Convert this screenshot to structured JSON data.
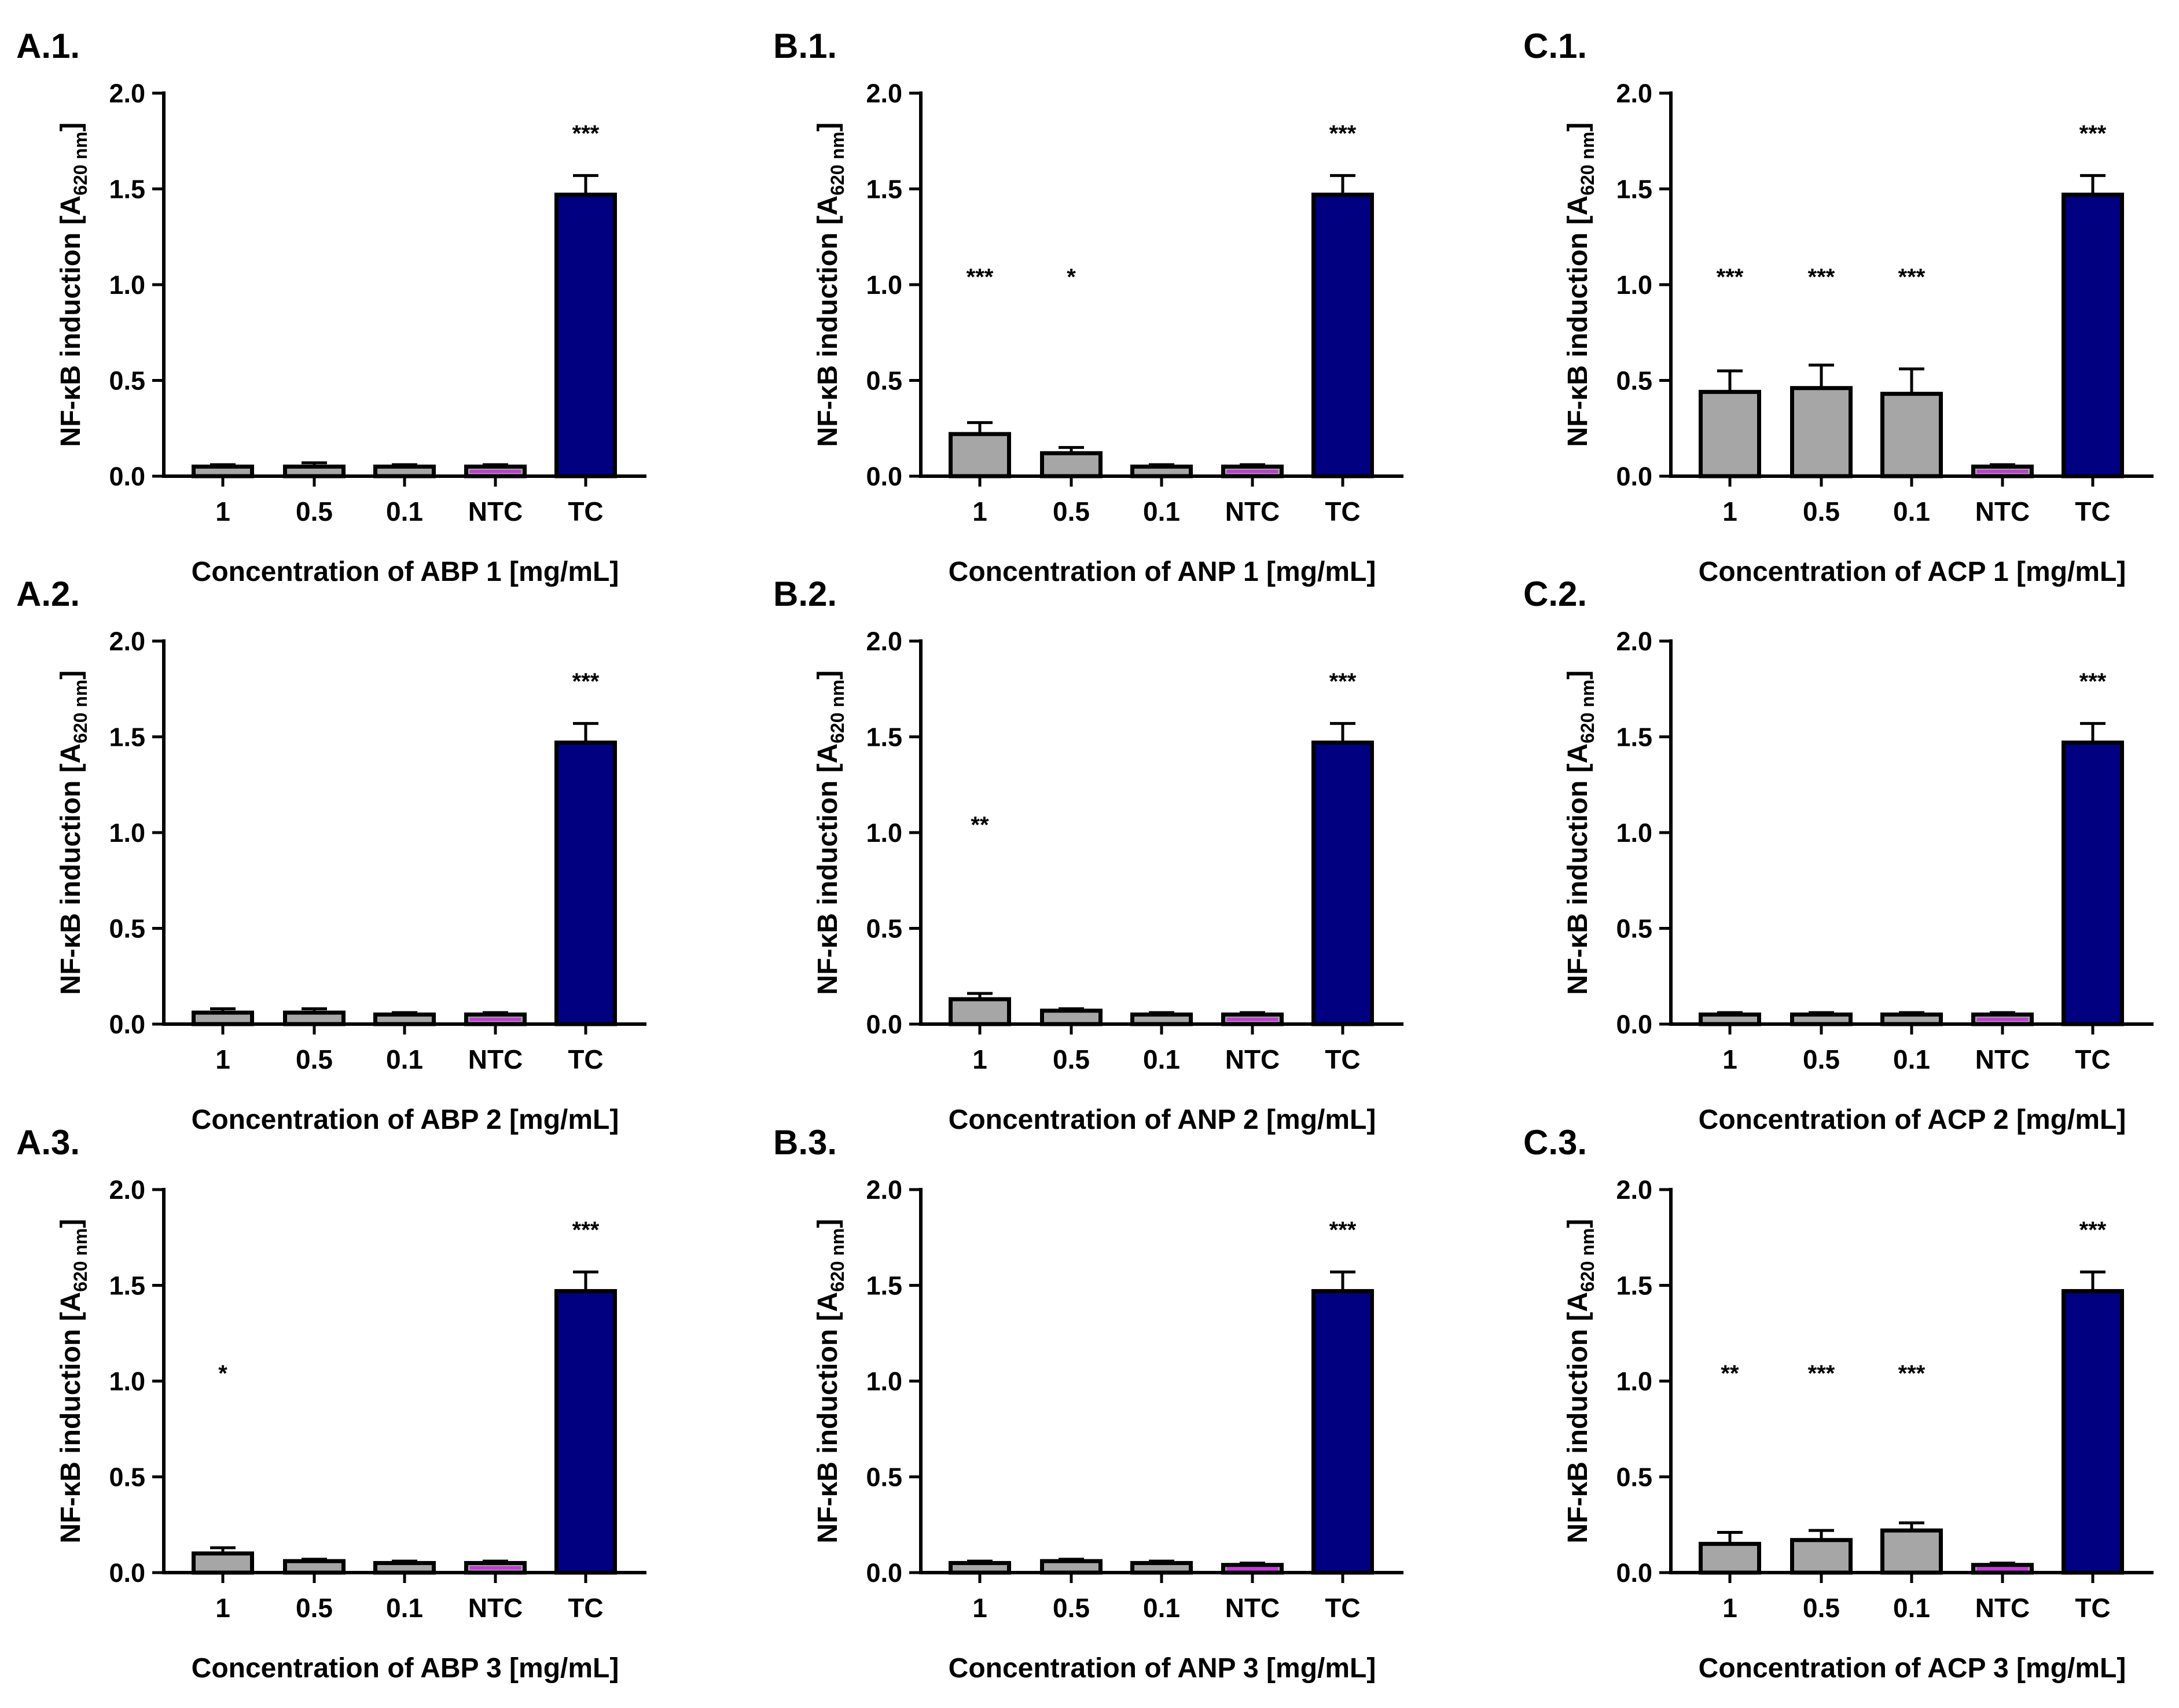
{
  "figure": {
    "colors": {
      "sample": "#A6A6A6",
      "ntc": "#C23BD6",
      "tc": "#000080",
      "stroke": "#000000"
    },
    "panels": [
      {
        "id": "A.1.",
        "xlabel": "Concentration of ABP 1 [mg/mL]"
      },
      {
        "id": "B.1.",
        "xlabel": "Concentration of ANP 1 [mg/mL]"
      },
      {
        "id": "C.1.",
        "xlabel": "Concentration of ACP 1 [mg/mL]"
      },
      {
        "id": "A.2.",
        "xlabel": "Concentration of ABP 2 [mg/mL]"
      },
      {
        "id": "B.2.",
        "xlabel": "Concentration of ANP 2 [mg/mL]"
      },
      {
        "id": "C.2.",
        "xlabel": "Concentration of ACP 2 [mg/mL]"
      },
      {
        "id": "A.3.",
        "xlabel": "Concentration of ABP 3 [mg/mL]"
      },
      {
        "id": "B.3.",
        "xlabel": "Concentration of ANP 3 [mg/mL]"
      },
      {
        "id": "C.3.",
        "xlabel": "Concentration of ACP 3 [mg/mL]"
      }
    ]
  },
  "chart_data": [
    {
      "panel": "A.1.",
      "type": "bar",
      "title": "",
      "categories": [
        "1",
        "0.5",
        "0.1",
        "NTC",
        "TC"
      ],
      "values": [
        0.05,
        0.05,
        0.05,
        0.05,
        1.47
      ],
      "errors": [
        0.01,
        0.02,
        0.01,
        0.01,
        0.1
      ],
      "significance": [
        "",
        "",
        "",
        "",
        "***"
      ],
      "xlabel": "Concentration of ABP 1 [mg/mL]",
      "ylabel": "NF-κB induction [A620 nm]",
      "ylabel_parts": {
        "main": "NF-κB induction [A",
        "sub": "620 nm",
        "end": "]"
      },
      "ylim": [
        0,
        2.0
      ],
      "yticks": [
        "0.0",
        "0.5",
        "1.0",
        "1.5",
        "2.0"
      ],
      "grid": false,
      "legend": "none"
    },
    {
      "panel": "B.1.",
      "type": "bar",
      "title": "",
      "categories": [
        "1",
        "0.5",
        "0.1",
        "NTC",
        "TC"
      ],
      "values": [
        0.22,
        0.12,
        0.05,
        0.05,
        1.47
      ],
      "errors": [
        0.06,
        0.03,
        0.01,
        0.01,
        0.1
      ],
      "significance": [
        "***",
        "*",
        "",
        "",
        "***"
      ],
      "xlabel": "Concentration of ANP 1 [mg/mL]",
      "ylabel": "NF-κB induction [A620 nm]",
      "ylabel_parts": {
        "main": "NF-κB induction [A",
        "sub": "620 nm",
        "end": "]"
      },
      "ylim": [
        0,
        2.0
      ],
      "yticks": [
        "0.0",
        "0.5",
        "1.0",
        "1.5",
        "2.0"
      ],
      "grid": false,
      "legend": "none"
    },
    {
      "panel": "C.1.",
      "type": "bar",
      "title": "",
      "categories": [
        "1",
        "0.5",
        "0.1",
        "NTC",
        "TC"
      ],
      "values": [
        0.44,
        0.46,
        0.43,
        0.05,
        1.47
      ],
      "errors": [
        0.11,
        0.12,
        0.13,
        0.01,
        0.1
      ],
      "significance": [
        "***",
        "***",
        "***",
        "",
        "***"
      ],
      "xlabel": "Concentration of ACP 1 [mg/mL]",
      "ylabel": "NF-κB induction [A620 nm]",
      "ylabel_parts": {
        "main": "NF-κB induction [A",
        "sub": "620 nm",
        "end": "]"
      },
      "ylim": [
        0,
        2.0
      ],
      "yticks": [
        "0.0",
        "0.5",
        "1.0",
        "1.5",
        "2.0"
      ],
      "grid": false,
      "legend": "none"
    },
    {
      "panel": "A.2.",
      "type": "bar",
      "title": "",
      "categories": [
        "1",
        "0.5",
        "0.1",
        "NTC",
        "TC"
      ],
      "values": [
        0.06,
        0.06,
        0.05,
        0.05,
        1.47
      ],
      "errors": [
        0.02,
        0.02,
        0.01,
        0.01,
        0.1
      ],
      "significance": [
        "",
        "",
        "",
        "",
        "***"
      ],
      "xlabel": "Concentration of ABP 2 [mg/mL]",
      "ylabel": "NF-κB induction [A620 nm]",
      "ylabel_parts": {
        "main": "NF-κB induction [A",
        "sub": "620 nm",
        "end": "]"
      },
      "ylim": [
        0,
        2.0
      ],
      "yticks": [
        "0.0",
        "0.5",
        "1.0",
        "1.5",
        "2.0"
      ],
      "grid": false,
      "legend": "none"
    },
    {
      "panel": "B.2.",
      "type": "bar",
      "title": "",
      "categories": [
        "1",
        "0.5",
        "0.1",
        "NTC",
        "TC"
      ],
      "values": [
        0.13,
        0.07,
        0.05,
        0.05,
        1.47
      ],
      "errors": [
        0.03,
        0.01,
        0.01,
        0.01,
        0.1
      ],
      "significance": [
        "**",
        "",
        "",
        "",
        "***"
      ],
      "xlabel": "Concentration of ANP 2 [mg/mL]",
      "ylabel": "NF-κB induction [A620 nm]",
      "ylabel_parts": {
        "main": "NF-κB induction [A",
        "sub": "620 nm",
        "end": "]"
      },
      "ylim": [
        0,
        2.0
      ],
      "yticks": [
        "0.0",
        "0.5",
        "1.0",
        "1.5",
        "2.0"
      ],
      "grid": false,
      "legend": "none"
    },
    {
      "panel": "C.2.",
      "type": "bar",
      "title": "",
      "categories": [
        "1",
        "0.5",
        "0.1",
        "NTC",
        "TC"
      ],
      "values": [
        0.05,
        0.05,
        0.05,
        0.05,
        1.47
      ],
      "errors": [
        0.01,
        0.01,
        0.01,
        0.01,
        0.1
      ],
      "significance": [
        "",
        "",
        "",
        "",
        "***"
      ],
      "xlabel": "Concentration of ACP 2 [mg/mL]",
      "ylabel": "NF-κB induction [A620 nm]",
      "ylabel_parts": {
        "main": "NF-κB induction [A",
        "sub": "620 nm",
        "end": "]"
      },
      "ylim": [
        0,
        2.0
      ],
      "yticks": [
        "0.0",
        "0.5",
        "1.0",
        "1.5",
        "2.0"
      ],
      "grid": false,
      "legend": "none"
    },
    {
      "panel": "A.3.",
      "type": "bar",
      "title": "",
      "categories": [
        "1",
        "0.5",
        "0.1",
        "NTC",
        "TC"
      ],
      "values": [
        0.1,
        0.06,
        0.05,
        0.05,
        1.47
      ],
      "errors": [
        0.03,
        0.01,
        0.01,
        0.01,
        0.1
      ],
      "significance": [
        "*",
        "",
        "",
        "",
        "***"
      ],
      "xlabel": "Concentration of ABP 3 [mg/mL]",
      "ylabel": "NF-κB induction [A620 nm]",
      "ylabel_parts": {
        "main": "NF-κB induction [A",
        "sub": "620 nm",
        "end": "]"
      },
      "ylim": [
        0,
        2.0
      ],
      "yticks": [
        "0.0",
        "0.5",
        "1.0",
        "1.5",
        "2.0"
      ],
      "grid": false,
      "legend": "none"
    },
    {
      "panel": "B.3.",
      "type": "bar",
      "title": "",
      "categories": [
        "1",
        "0.5",
        "0.1",
        "NTC",
        "TC"
      ],
      "values": [
        0.05,
        0.06,
        0.05,
        0.04,
        1.47
      ],
      "errors": [
        0.01,
        0.01,
        0.01,
        0.01,
        0.1
      ],
      "significance": [
        "",
        "",
        "",
        "",
        "***"
      ],
      "xlabel": "Concentration of ANP 3 [mg/mL]",
      "ylabel": "NF-κB induction [A620 nm]",
      "ylabel_parts": {
        "main": "NF-κB induction [A",
        "sub": "620 nm",
        "end": "]"
      },
      "ylim": [
        0,
        2.0
      ],
      "yticks": [
        "0.0",
        "0.5",
        "1.0",
        "1.5",
        "2.0"
      ],
      "grid": false,
      "legend": "none"
    },
    {
      "panel": "C.3.",
      "type": "bar",
      "title": "",
      "categories": [
        "1",
        "0.5",
        "0.1",
        "NTC",
        "TC"
      ],
      "values": [
        0.15,
        0.17,
        0.22,
        0.04,
        1.47
      ],
      "errors": [
        0.06,
        0.05,
        0.04,
        0.01,
        0.1
      ],
      "significance": [
        "**",
        "***",
        "***",
        "",
        "***"
      ],
      "xlabel": "Concentration of ACP 3 [mg/mL]",
      "ylabel": "NF-κB induction [A620 nm]",
      "ylabel_parts": {
        "main": "NF-κB induction [A",
        "sub": "620 nm",
        "end": "]"
      },
      "ylim": [
        0,
        2.0
      ],
      "yticks": [
        "0.0",
        "0.5",
        "1.0",
        "1.5",
        "2.0"
      ],
      "grid": false,
      "legend": "none"
    }
  ]
}
